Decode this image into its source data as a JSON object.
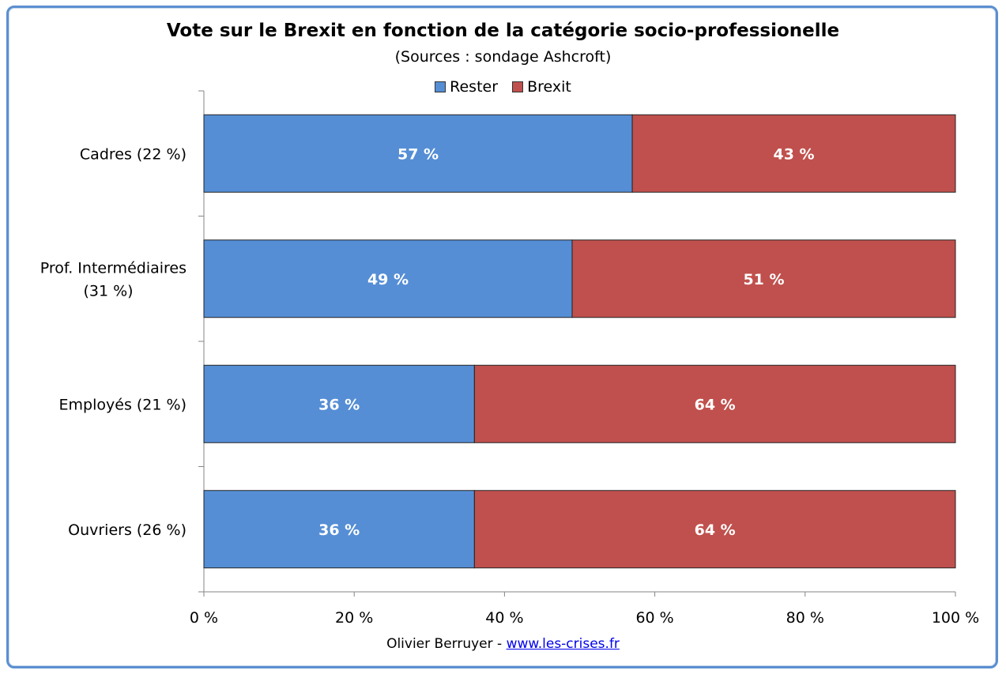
{
  "chart_data": {
    "type": "bar",
    "orientation": "horizontal",
    "stacked": true,
    "title": "Vote sur le Brexit en fonction de la catégorie socio-professionelle",
    "subtitle": "(Sources : sondage Ashcroft)",
    "categories": [
      [
        "Cadres (22 %)"
      ],
      [
        "Prof. Intermédiaires",
        "(31 %)"
      ],
      [
        "Employés (21 %)"
      ],
      [
        "Ouvriers (26 %)"
      ]
    ],
    "series": [
      {
        "name": "Rester",
        "color": "#558ed5",
        "values": [
          57,
          49,
          36,
          36
        ],
        "labels": [
          "57 %",
          "49 %",
          "36 %",
          "36 %"
        ]
      },
      {
        "name": "Brexit",
        "color": "#c0504d",
        "values": [
          43,
          51,
          64,
          64
        ],
        "labels": [
          "43 %",
          "51 %",
          "64 %",
          "64 %"
        ]
      }
    ],
    "xlim": [
      0,
      100
    ],
    "xticks": [
      0,
      20,
      40,
      60,
      80,
      100
    ],
    "xtick_labels": [
      "0 %",
      "20 %",
      "40 %",
      "60 %",
      "80 %",
      "100 %"
    ],
    "legend_position": "top-center",
    "grid": false
  },
  "footer": {
    "author": "Olivier Berruyer",
    "separator": " - ",
    "link": "www.les-crises.fr"
  }
}
